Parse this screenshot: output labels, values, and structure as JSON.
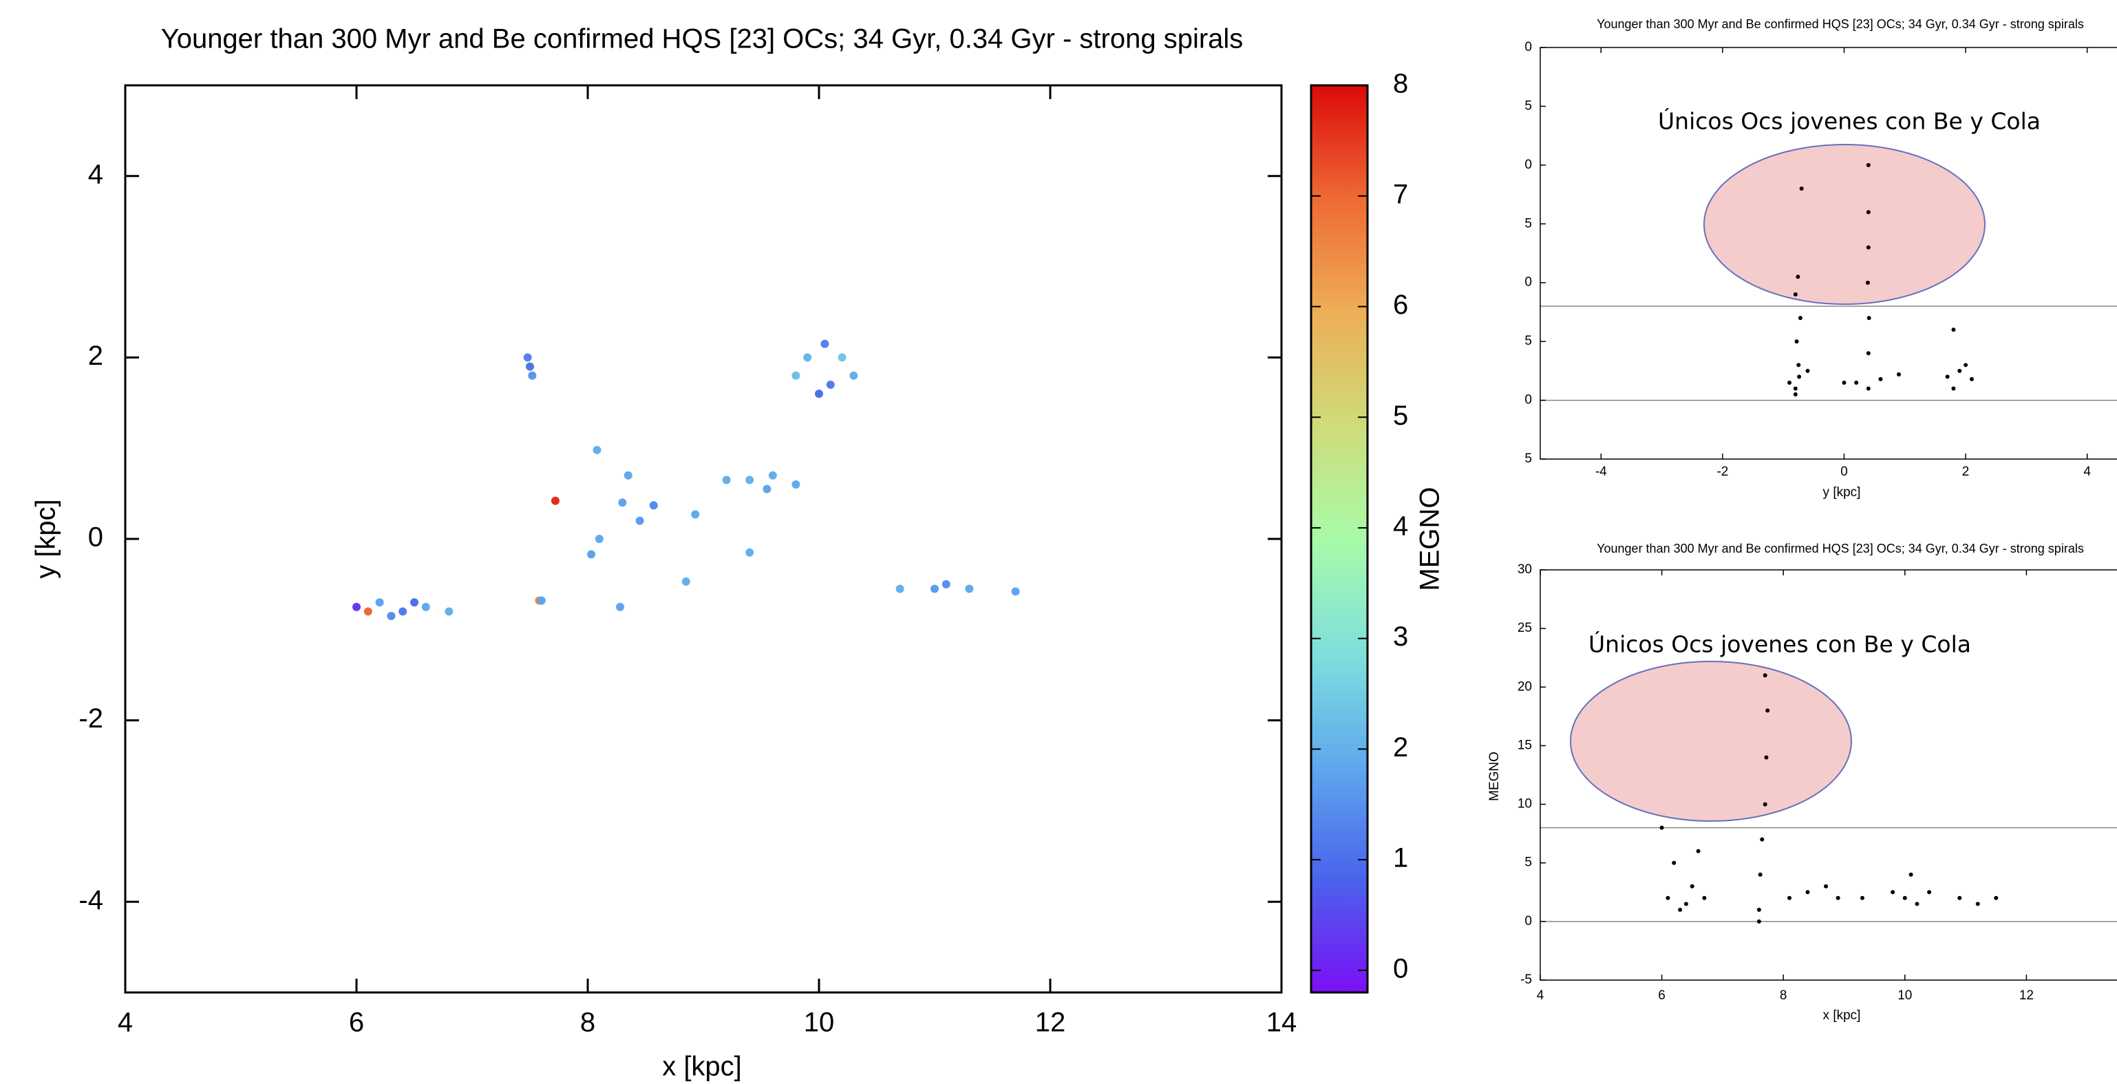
{
  "chart_data": [
    {
      "type": "scatter",
      "title": "Younger than 300 Myr and Be confirmed HQS [23] OCs; 34 Gyr, 0.34 Gyr - strong spirals",
      "x_label": "x [kpc]",
      "y_label": "y [kpc]",
      "colorbar_label": "MEGNO",
      "xlim": [
        4,
        14
      ],
      "ylim": [
        -5,
        5
      ],
      "xticks": [
        4,
        6,
        8,
        10,
        12,
        14
      ],
      "yticks": [
        -4,
        -2,
        0,
        2,
        4
      ],
      "clim": [
        -0.2,
        8
      ],
      "cticks": [
        0,
        1,
        2,
        3,
        4,
        5,
        6,
        7,
        8
      ],
      "colormap": [
        "#7a10f5",
        "#4a63ec",
        "#5fa8ee",
        "#7fe0dc",
        "#a8fba8",
        "#cfdc7a",
        "#eeae56",
        "#ee6a34",
        "#dc0a0a"
      ],
      "x": [
        6.0,
        6.2,
        6.4,
        6.6,
        6.8,
        6.3,
        6.1,
        6.5,
        7.48,
        7.52,
        7.5,
        9.9,
        10.1,
        10.2,
        10.0,
        9.8,
        10.3,
        10.05,
        9.4,
        9.6,
        9.8,
        9.2,
        9.55,
        10.7,
        11.0,
        11.3,
        11.7,
        11.1,
        7.72,
        7.58,
        7.6,
        8.08,
        8.35,
        8.57,
        8.93,
        9.4,
        8.85,
        8.28,
        8.03,
        8.45,
        8.3,
        8.1
      ],
      "values": [
        -0.75,
        -0.7,
        -0.8,
        -0.75,
        -0.8,
        -0.85,
        -0.8,
        -0.7,
        2.0,
        1.8,
        1.9,
        2.0,
        1.7,
        2.0,
        1.6,
        1.8,
        1.8,
        2.15,
        0.65,
        0.7,
        0.6,
        0.65,
        0.55,
        -0.55,
        -0.55,
        -0.55,
        -0.58,
        -0.5,
        0.42,
        -0.68,
        -0.68,
        0.98,
        0.7,
        0.37,
        0.27,
        -0.15,
        -0.47,
        -0.75,
        -0.17,
        0.2,
        0.4,
        0.0
      ],
      "color_values": [
        0.3,
        1.8,
        1.2,
        1.9,
        2.0,
        1.5,
        7.0,
        1.0,
        1.3,
        1.6,
        1.1,
        2.1,
        1.2,
        2.4,
        1.0,
        2.3,
        2.0,
        1.3,
        2.1,
        2.0,
        1.9,
        2.0,
        1.8,
        2.0,
        1.7,
        1.9,
        1.8,
        1.5,
        7.6,
        6.5,
        1.8,
        2.0,
        1.9,
        1.4,
        1.9,
        2.0,
        2.0,
        1.8,
        1.8,
        1.7,
        1.8,
        1.9
      ]
    },
    {
      "type": "scatter",
      "title": "Younger than 300 Myr and Be confirmed HQS [23] OCs; 34 Gyr, 0.34 Gyr - strong spirals",
      "x_label": "y [kpc]",
      "annotation": "Únicos Ocs jovenes con Be y Cola",
      "color": "#000000",
      "xlim": [
        -5,
        5
      ],
      "ylim": [
        -5,
        30
      ],
      "xticks": [
        -4,
        -2,
        0,
        2,
        4
      ],
      "yticks": [
        {
          "value": -5,
          "label": "5"
        },
        0,
        5,
        {
          "value": 10,
          "label": "0"
        },
        {
          "value": 15,
          "label": "5"
        },
        {
          "value": 20,
          "label": "0"
        },
        {
          "value": 25,
          "label": "5"
        },
        {
          "value": 30,
          "label": "0"
        }
      ],
      "reference_lines": [
        8,
        0
      ],
      "x": [
        -0.8,
        -0.75,
        -0.78,
        -0.72,
        -0.8,
        -0.76,
        -0.74,
        -0.9,
        -0.6,
        -0.8,
        0.4,
        0.4,
        0.41,
        0.39,
        0.4,
        0.4,
        0.4,
        0.2,
        0.6,
        0.9,
        0.0,
        1.7,
        1.9,
        2.1,
        1.8,
        2.0,
        1.8,
        -0.7
      ],
      "values": [
        1,
        3,
        5,
        7,
        9,
        10.5,
        2,
        1.5,
        2.5,
        0.5,
        1,
        4,
        7,
        10,
        13,
        16,
        20,
        1.5,
        1.8,
        2.2,
        1.5,
        2.0,
        2.5,
        1.8,
        1.0,
        3.0,
        6.0,
        18
      ],
      "x_unused": null
    },
    {
      "type": "scatter",
      "title": "Younger than 300 Myr and Be confirmed HQS [23] OCs; 34 Gyr, 0.34 Gyr - strong spirals",
      "x_label": "x [kpc]",
      "y_label": "MEGNO",
      "annotation": "Únicos Ocs jovenes con Be y Cola",
      "color": "#000000",
      "xlim": [
        4,
        14
      ],
      "ylim": [
        -5,
        30
      ],
      "xticks": [
        4,
        6,
        8,
        10,
        12
      ],
      "yticks": [
        -5,
        0,
        5,
        10,
        15,
        20,
        25,
        30
      ],
      "reference_lines": [
        8,
        0
      ],
      "x": [
        6.1,
        6.3,
        6.5,
        6.7,
        6.2,
        6.6,
        6.4,
        7.6,
        7.62,
        7.65,
        7.7,
        7.72,
        7.74,
        7.7,
        7.6,
        8.1,
        8.4,
        8.7,
        8.9,
        9.3,
        9.8,
        10.0,
        10.2,
        10.4,
        10.1,
        10.9,
        11.2,
        11.5,
        6.0
      ],
      "values": [
        2,
        1,
        3,
        2,
        5,
        6,
        1.5,
        1,
        4,
        7,
        10,
        14,
        18,
        21,
        0,
        2,
        2.5,
        3,
        2,
        2,
        2.5,
        2,
        1.5,
        2.5,
        4,
        2,
        1.5,
        2,
        8
      ]
    }
  ]
}
